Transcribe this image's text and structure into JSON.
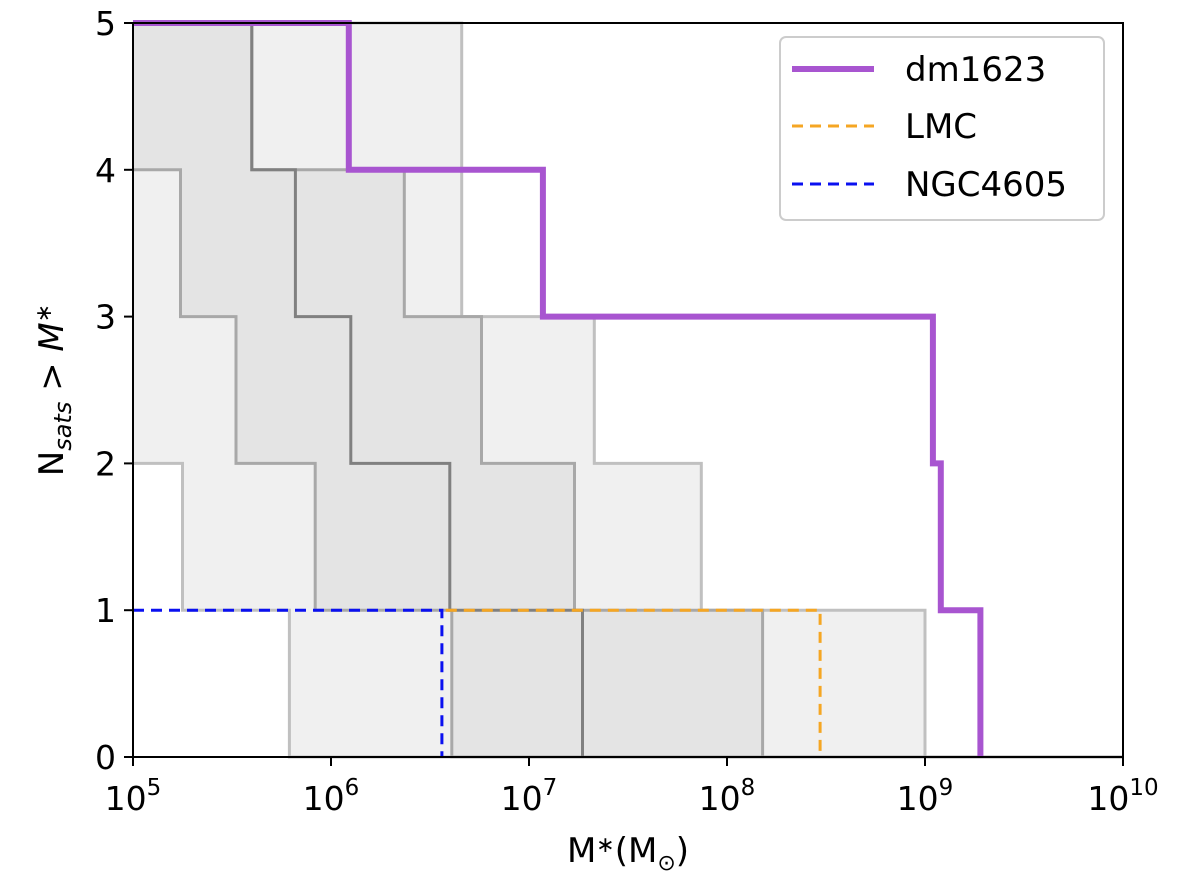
{
  "chart_data": {
    "type": "line",
    "xscale": "log",
    "xlim_exp": [
      5,
      10
    ],
    "ylim": [
      0,
      5
    ],
    "grid": false,
    "xlabel": {
      "base": "M",
      "sub1": "∗",
      "paren_open": "(M",
      "sub2": "⊙",
      "paren_close": ")"
    },
    "ylabel": {
      "base": "N",
      "sub": "sats",
      "rest": " > ",
      "var": "M",
      "var_sub": "∗"
    },
    "xticks": [
      {
        "exp": 5,
        "base": "10",
        "sup": "5"
      },
      {
        "exp": 6,
        "base": "10",
        "sup": "6"
      },
      {
        "exp": 7,
        "base": "10",
        "sup": "7"
      },
      {
        "exp": 8,
        "base": "10",
        "sup": "8"
      },
      {
        "exp": 9,
        "base": "10",
        "sup": "9"
      },
      {
        "exp": 10,
        "base": "10",
        "sup": "10"
      }
    ],
    "yticks": [
      "0",
      "1",
      "2",
      "3",
      "4",
      "5"
    ],
    "bands": [
      {
        "name": "outer-band",
        "fill": "#f0f0f0",
        "edge": "#c0c0c0",
        "lower": [
          [
            5.0,
            2
          ],
          [
            5.25,
            2
          ],
          [
            5.25,
            1
          ],
          [
            5.79,
            1
          ],
          [
            5.79,
            0
          ],
          [
            10,
            0
          ]
        ],
        "upper": [
          [
            5.0,
            5
          ],
          [
            6.66,
            5
          ],
          [
            6.66,
            3
          ],
          [
            7.33,
            3
          ],
          [
            7.33,
            2
          ],
          [
            7.87,
            2
          ],
          [
            7.87,
            1
          ],
          [
            9.0,
            1
          ],
          [
            9.0,
            0
          ],
          [
            10,
            0
          ]
        ]
      },
      {
        "name": "inner-band",
        "fill": "#e4e4e4",
        "edge": "#a8a8a8",
        "lower": [
          [
            5.0,
            4
          ],
          [
            5.24,
            4
          ],
          [
            5.24,
            3
          ],
          [
            5.52,
            3
          ],
          [
            5.52,
            2
          ],
          [
            5.92,
            2
          ],
          [
            5.92,
            1
          ],
          [
            6.61,
            1
          ],
          [
            6.61,
            0
          ],
          [
            10,
            0
          ]
        ],
        "upper": [
          [
            5.0,
            5
          ],
          [
            5.6,
            5
          ],
          [
            5.6,
            4
          ],
          [
            6.37,
            4
          ],
          [
            6.37,
            3
          ],
          [
            6.76,
            3
          ],
          [
            6.76,
            2
          ],
          [
            7.23,
            2
          ],
          [
            7.23,
            1
          ],
          [
            8.18,
            1
          ],
          [
            8.18,
            0
          ],
          [
            10,
            0
          ]
        ]
      }
    ],
    "median": {
      "name": "median",
      "color": "#808080",
      "points": [
        [
          5.0,
          5
        ],
        [
          5.6,
          5
        ],
        [
          5.6,
          4
        ],
        [
          5.82,
          4
        ],
        [
          5.82,
          3
        ],
        [
          6.1,
          3
        ],
        [
          6.1,
          2
        ],
        [
          6.6,
          2
        ],
        [
          6.6,
          1
        ],
        [
          7.27,
          1
        ],
        [
          7.27,
          0
        ]
      ]
    },
    "series": [
      {
        "name": "dm1623",
        "color": "#a855d0",
        "style": "solid",
        "width": 6,
        "points": [
          [
            5.0,
            5
          ],
          [
            6.09,
            5
          ],
          [
            6.09,
            4
          ],
          [
            7.07,
            4
          ],
          [
            7.07,
            3
          ],
          [
            9.04,
            3
          ],
          [
            9.04,
            2
          ],
          [
            9.08,
            2
          ],
          [
            9.08,
            1
          ],
          [
            9.28,
            1
          ],
          [
            9.28,
            0
          ]
        ]
      },
      {
        "name": "LMC",
        "color": "#f5a623",
        "style": "dashed",
        "width": 3,
        "points": [
          [
            6.58,
            1
          ],
          [
            8.47,
            1
          ],
          [
            8.47,
            0
          ]
        ]
      },
      {
        "name": "NGC4605",
        "color": "#0a10f0",
        "style": "dashed",
        "width": 3,
        "points": [
          [
            5.0,
            1
          ],
          [
            6.56,
            1
          ],
          [
            6.56,
            0
          ]
        ]
      }
    ],
    "legend": {
      "position": "top-right",
      "entries": [
        "dm1623",
        "LMC",
        "NGC4605"
      ]
    }
  }
}
